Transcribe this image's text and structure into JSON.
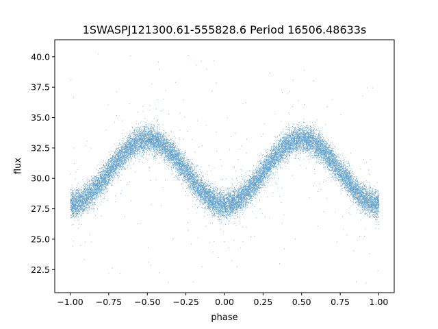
{
  "chart_data": {
    "type": "scatter",
    "title": "1SWASPJ121300.61-555828.6 Period 16506.48633s",
    "xlabel": "phase",
    "ylabel": "flux",
    "xlim": [
      -1.1,
      1.1
    ],
    "ylim": [
      20.6,
      41.4
    ],
    "x_ticks": [
      -1.0,
      -0.75,
      -0.5,
      -0.25,
      0.0,
      0.25,
      0.5,
      0.75,
      1.0
    ],
    "x_tick_labels": [
      "−1.00",
      "−0.75",
      "−0.50",
      "−0.25",
      "0.00",
      "0.25",
      "0.50",
      "0.75",
      "1.00"
    ],
    "y_ticks": [
      22.5,
      25.0,
      27.5,
      30.0,
      32.5,
      35.0,
      37.5,
      40.0
    ],
    "y_tick_labels": [
      "22.5",
      "25.0",
      "27.5",
      "30.0",
      "32.5",
      "35.0",
      "37.5",
      "40.0"
    ],
    "grid": false,
    "legend": "none",
    "series": [
      {
        "color": "#1f77b4",
        "shape": "sinusoid",
        "phase_range": [
          -1.0,
          1.0
        ],
        "mean_flux": 30.55,
        "amplitude": 2.7,
        "peak_phases": [
          -0.5,
          0.5
        ],
        "trough_phases": [
          -1.0,
          0.0,
          1.0
        ],
        "scatter_sigma": 0.55,
        "outlier_range": [
          21.3,
          40.3
        ],
        "point_count": 20000
      }
    ]
  }
}
